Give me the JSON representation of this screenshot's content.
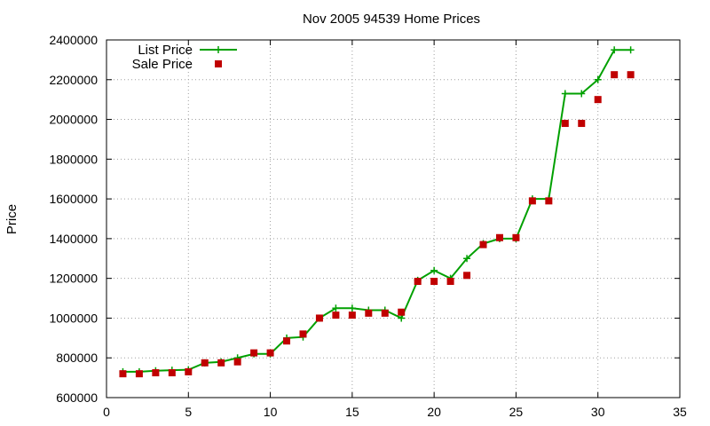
{
  "chart_data": {
    "type": "line",
    "title": "Nov 2005 94539 Home Prices",
    "xlabel": "",
    "ylabel": "Price",
    "xlim": [
      0,
      35
    ],
    "ylim": [
      600000,
      2400000
    ],
    "x_ticks": [
      0,
      5,
      10,
      15,
      20,
      25,
      30,
      35
    ],
    "y_ticks": [
      600000,
      800000,
      1000000,
      1200000,
      1400000,
      1600000,
      1800000,
      2000000,
      2200000,
      2400000
    ],
    "grid": true,
    "legend_position": "top-left",
    "x": [
      1,
      2,
      3,
      4,
      5,
      6,
      7,
      8,
      9,
      10,
      11,
      12,
      13,
      14,
      15,
      16,
      17,
      18,
      19,
      20,
      21,
      22,
      23,
      24,
      25,
      26,
      27,
      28,
      29,
      30,
      31,
      32
    ],
    "series": [
      {
        "name": "List Price",
        "style": "line-with-plus-markers",
        "color": "#00a000",
        "values": [
          730000,
          730000,
          735000,
          738000,
          740000,
          775000,
          780000,
          800000,
          820000,
          820000,
          900000,
          905000,
          1000000,
          1050000,
          1050000,
          1040000,
          1040000,
          1000000,
          1190000,
          1240000,
          1200000,
          1300000,
          1375000,
          1400000,
          1400000,
          1600000,
          1600000,
          2130000,
          2130000,
          2200000,
          2350000,
          2350000
        ]
      },
      {
        "name": "Sale Price",
        "style": "square-points",
        "color": "#c00000",
        "values": [
          720000,
          720000,
          725000,
          725000,
          730000,
          775000,
          775000,
          780000,
          825000,
          825000,
          885000,
          920000,
          1000000,
          1015000,
          1015000,
          1025000,
          1025000,
          1030000,
          1185000,
          1185000,
          1185000,
          1215000,
          1370000,
          1405000,
          1405000,
          1590000,
          1590000,
          1980000,
          1980000,
          2100000,
          2225000,
          2225000
        ]
      }
    ]
  }
}
